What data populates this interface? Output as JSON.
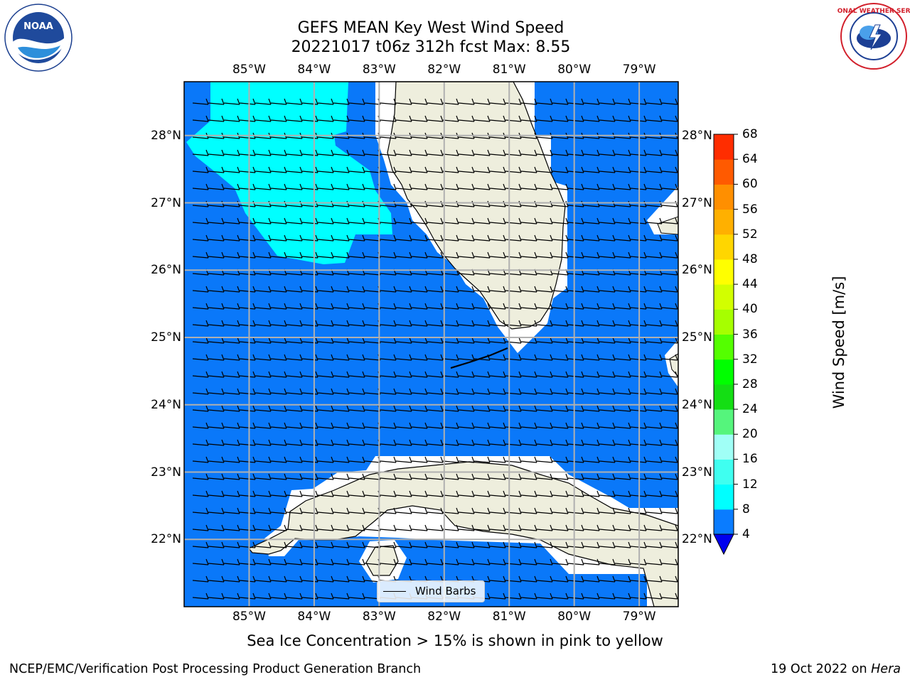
{
  "title": {
    "line1": "GEFS MEAN Key West Wind Speed",
    "line2": "20221017 t06z 312h fcst   Max: 8.55"
  },
  "map": {
    "lon_range": [
      -86.0,
      -78.4
    ],
    "lat_range": [
      21.0,
      28.8
    ],
    "lon_ticks": [
      "85°W",
      "84°W",
      "83°W",
      "82°W",
      "81°W",
      "80°W",
      "79°W"
    ],
    "lat_ticks": [
      "28°N",
      "27°N",
      "26°N",
      "25°N",
      "24°N",
      "23°N",
      "22°N"
    ],
    "ocean_color": "#0a78f9",
    "land_color": "#eeeedd",
    "grid": true,
    "legend": {
      "label": "Wind Barbs",
      "placement": "bottom-center"
    }
  },
  "colorbar": {
    "label": "Wind Speed [m/s]",
    "levels": [
      "4",
      "8",
      "12",
      "16",
      "20",
      "24",
      "28",
      "32",
      "36",
      "40",
      "44",
      "48",
      "52",
      "56",
      "60",
      "64",
      "68"
    ],
    "colors": [
      "#0a7cff",
      "#00ffff",
      "#3ffff0",
      "#a0fff6",
      "#55f57c",
      "#14de14",
      "#00ff00",
      "#54ff00",
      "#a6ff00",
      "#d2ff00",
      "#ffff00",
      "#ffd600",
      "#ffb000",
      "#ff8f00",
      "#ff5a00",
      "#ff2d00"
    ],
    "extend_min_color": "#0000ee"
  },
  "caption": "Sea Ice Concentration > 15% is shown in pink to yellow",
  "footer": {
    "left": "NCEP/EMC/Verification Post Processing Product Generation Branch",
    "right_date": "19 Oct 2022 on",
    "right_host": "Hera"
  },
  "logos": {
    "noaa": "NOAA",
    "nws": "NATIONAL WEATHER SERVICE"
  }
}
